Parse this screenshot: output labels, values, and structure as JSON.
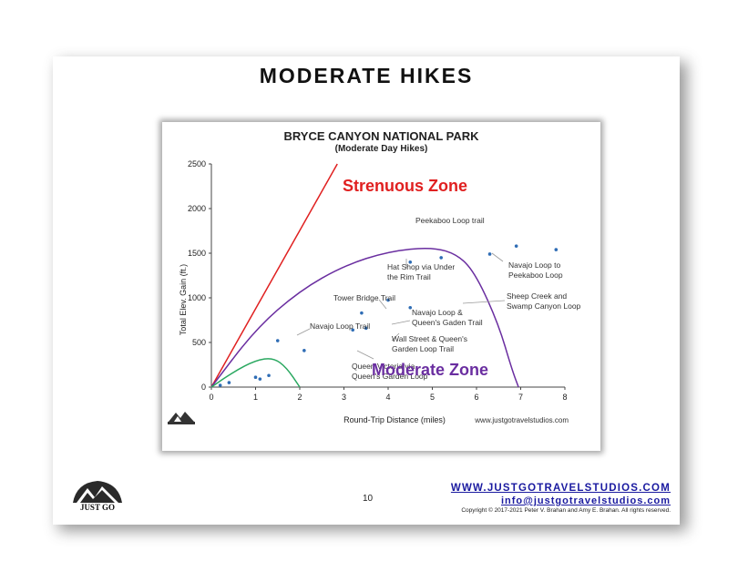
{
  "slide": {
    "title": "MODERATE HIKES",
    "page_number": "10",
    "footer_url": "WWW.JUSTGOTRAVELSTUDIOS.COM",
    "footer_email": "info@justgotravelstudios.com",
    "copyright": "Copyright © 2017-2021 Peter V. Brahan and Amy E. Brahan.  All rights reserved.",
    "logo_text": "JUST GO"
  },
  "chart_data": {
    "type": "scatter",
    "title": "BRYCE CANYON NATIONAL PARK",
    "subtitle": "(Moderate Day Hikes)",
    "xlabel": "Round-Trip Distance (miles)",
    "ylabel": "Total Elev. Gain (ft.)",
    "watermark": "www.justgotravelstudios.com",
    "xlim": [
      0,
      8
    ],
    "ylim": [
      0,
      2500
    ],
    "xticks": [
      "0",
      "1",
      "2",
      "3",
      "4",
      "5",
      "6",
      "7",
      "8"
    ],
    "yticks": [
      "0",
      "500",
      "1000",
      "1500",
      "2000",
      "2500"
    ],
    "zones": [
      {
        "label": "Strenuous Zone",
        "color": "#e02020"
      },
      {
        "label": "Moderate Zone",
        "color": "#6a2ea0"
      }
    ],
    "boundary_lines": [
      {
        "color": "#e02020",
        "points": [
          [
            0,
            0
          ],
          [
            2.85,
            2500
          ]
        ]
      },
      {
        "color": "#6a2ea0",
        "points": [
          [
            0,
            0
          ],
          [
            1,
            650
          ],
          [
            2,
            1080
          ],
          [
            3,
            1360
          ],
          [
            4,
            1520
          ],
          [
            5,
            1570
          ],
          [
            5.6,
            1480
          ],
          [
            6,
            1250
          ],
          [
            6.5,
            700
          ],
          [
            6.8,
            200
          ],
          [
            6.95,
            0
          ]
        ]
      },
      {
        "color": "#2aa860",
        "points": [
          [
            0,
            0
          ],
          [
            0.5,
            170
          ],
          [
            1,
            300
          ],
          [
            1.4,
            330
          ],
          [
            1.7,
            220
          ],
          [
            2.0,
            0
          ]
        ]
      }
    ],
    "points": [
      {
        "x": 0.2,
        "y": 20
      },
      {
        "x": 0.4,
        "y": 50
      },
      {
        "x": 1.0,
        "y": 110
      },
      {
        "x": 1.1,
        "y": 90
      },
      {
        "x": 1.3,
        "y": 130
      },
      {
        "x": 1.5,
        "y": 520
      },
      {
        "x": 2.1,
        "y": 410
      },
      {
        "x": 3.2,
        "y": 640
      },
      {
        "x": 3.5,
        "y": 660
      },
      {
        "x": 3.4,
        "y": 830
      },
      {
        "x": 4.0,
        "y": 975
      },
      {
        "x": 4.5,
        "y": 890
      },
      {
        "x": 4.5,
        "y": 1400
      },
      {
        "x": 5.2,
        "y": 1450
      },
      {
        "x": 6.3,
        "y": 1490
      },
      {
        "x": 6.9,
        "y": 1580
      },
      {
        "x": 7.8,
        "y": 1540
      }
    ],
    "annotations": [
      {
        "lines": [
          "Peekaboo Loop trail"
        ]
      },
      {
        "lines": [
          "Hat Shop via Under",
          "the Rim Trail"
        ]
      },
      {
        "lines": [
          "Navajo Loop to",
          "Peekaboo Loop"
        ]
      },
      {
        "lines": [
          "Tower Bridge Trail"
        ]
      },
      {
        "lines": [
          "Sheep Creek and",
          "Swamp Canyon Loop"
        ]
      },
      {
        "lines": [
          "Navajo Loop &",
          "Queen's Gaden Trail"
        ]
      },
      {
        "lines": [
          "Navajo Loop Trail"
        ]
      },
      {
        "lines": [
          "Wall Street & Queen's",
          "Garden Loop Trail"
        ]
      },
      {
        "lines": [
          "Queen Victoria via",
          "Queen's Garden Loop"
        ]
      }
    ]
  }
}
